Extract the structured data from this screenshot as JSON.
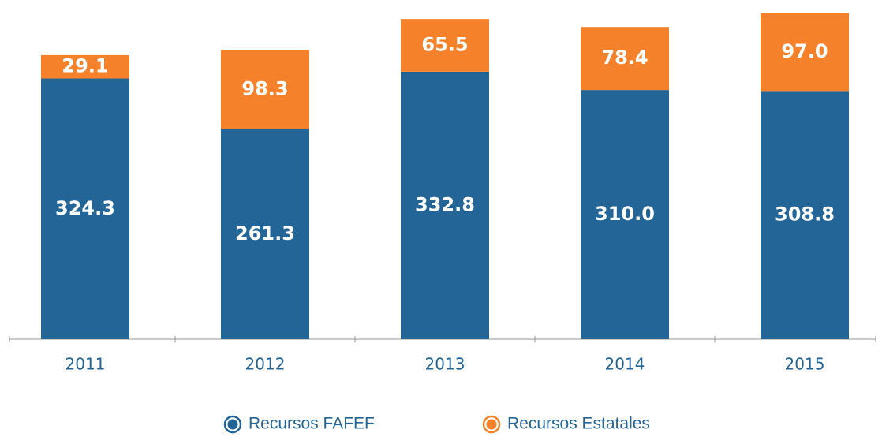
{
  "chart_data": {
    "type": "stacked_bar",
    "categories": [
      "2011",
      "2012",
      "2013",
      "2014",
      "2015"
    ],
    "series": [
      {
        "name": "Recursos FAFEF",
        "color": "#246597",
        "values": [
          324.3,
          261.3,
          332.8,
          310.0,
          308.8
        ],
        "value_labels": [
          "324.3",
          "261.3",
          "332.8",
          "310.0",
          "308.8"
        ]
      },
      {
        "name": "Recursos Estatales",
        "color": "#f5822a",
        "values": [
          29.1,
          98.3,
          65.5,
          78.4,
          97.0
        ],
        "value_labels": [
          "29.1",
          "98.3",
          "65.5",
          "78.4",
          "97.0"
        ]
      }
    ],
    "ylim": [
      0,
      420
    ]
  }
}
